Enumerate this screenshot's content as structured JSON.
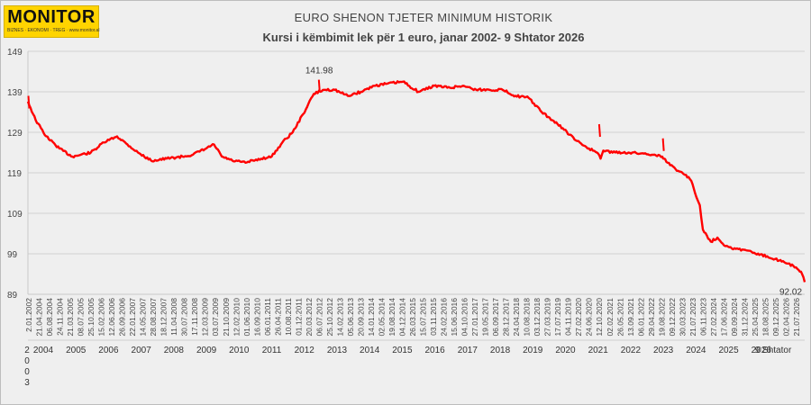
{
  "logo": {
    "name": "MONITOR",
    "tagline": "BIZNES · EKONOMI · TREG · www.monitor.al"
  },
  "chart_data": {
    "type": "line",
    "title": "EURO SHENON TJETER MINIMUM HISTORIK",
    "subtitle": "Kursi i këmbimit lek për 1 euro, janar 2002- 9 Shtator 2026",
    "xlabel": "",
    "ylabel": "",
    "ylim": [
      89,
      149
    ],
    "yticks": [
      89,
      99,
      109,
      119,
      129,
      139,
      149
    ],
    "grid": "horizontal",
    "line_color": "#ff0000",
    "series": [
      {
        "x": [
          "2002-01-01",
          "2002-04-01",
          "2002-08-01",
          "2003-01-01",
          "2003-06-01",
          "2004-01-01",
          "2004-06-01",
          "2004-11-01",
          "2005-03-01",
          "2005-07-01",
          "2005-12-01",
          "2006-06-01",
          "2006-12-01",
          "2007-04-01",
          "2007-09-01",
          "2007-12-01",
          "2008-03-01",
          "2008-07-01",
          "2008-12-01",
          "2009-03-01",
          "2009-06-01",
          "2009-10-01",
          "2010-02-01",
          "2010-06-01",
          "2010-10-01",
          "2011-02-01",
          "2011-06-01",
          "2011-10-01",
          "2012-03-01",
          "2012-08-01",
          "2013-01-01",
          "2013-06-01",
          "2013-12-01",
          "2014-06-01",
          "2014-12-01",
          "2015-06-01",
          "2015-11-01",
          "2016-04-01",
          "2016-09-01",
          "2017-02-01",
          "2017-07-01",
          "2017-12-01",
          "2018-05-01",
          "2018-09-01",
          "2019-01-01",
          "2019-06-01",
          "2019-11-01",
          "2020-02-01",
          "2020-03-15",
          "2020-04-15",
          "2020-09-01",
          "2021-02-01",
          "2021-07-01",
          "2021-12-01",
          "2022-03-01",
          "2022-03-20",
          "2022-05-01",
          "2022-09-01",
          "2022-12-01",
          "2023-02-01",
          "2023-04-01",
          "2023-05-10",
          "2023-06-15",
          "2023-08-01",
          "2023-09-15",
          "2023-12-01",
          "2024-02-01",
          "2024-04-01",
          "2024-07-01",
          "2024-10-01",
          "2025-01-01",
          "2025-04-01",
          "2025-07-01",
          "2025-10-01",
          "2026-01-01",
          "2026-03-01",
          "2026-05-01",
          "2026-07-01",
          "2026-08-10",
          "2026-09-09"
        ],
        "values": [
          136.6,
          132.0,
          128.0,
          125.0,
          123.0,
          124.0,
          126.5,
          128.0,
          126.0,
          124.0,
          122.0,
          122.5,
          123.0,
          123.5,
          125.0,
          126.0,
          123.0,
          122.0,
          121.5,
          122.0,
          122.5,
          123.0,
          126.5,
          129.0,
          133.5,
          138.5,
          139.5,
          139.5,
          138.0,
          139.0,
          140.5,
          141.0,
          141.5,
          139.0,
          140.5,
          140.0,
          140.5,
          139.5,
          139.5,
          139.5,
          138.0,
          137.5,
          134.0,
          132.0,
          130.0,
          127.0,
          125.0,
          124.0,
          122.5,
          124.5,
          124.0,
          124.0,
          123.8,
          123.5,
          123.0,
          122.5,
          121.5,
          119.5,
          118.5,
          117.0,
          113.0,
          111.0,
          105.0,
          103.5,
          102.0,
          103.0,
          101.5,
          100.8,
          100.2,
          100.0,
          99.5,
          98.7,
          98.4,
          97.7,
          97.2,
          96.6,
          96.0,
          95.0,
          94.0,
          92.02
        ],
        "peaks": [
          [
            "2002-01-06",
            138.0
          ],
          [
            "2011-04-01",
            141.98
          ],
          [
            "2020-02-27",
            131.0
          ],
          [
            "2022-03-08",
            127.5
          ]
        ]
      }
    ],
    "annotations": [
      {
        "text": "141.98",
        "x": "2011-04-01",
        "y": 141.98
      },
      {
        "text": "92.02",
        "x": "2026-09-09",
        "y": 92.02
      }
    ],
    "date_labels": [
      "2.01.2002",
      "21.04.2004",
      "06.08.2004",
      "24.11.2004",
      "21.03.2005",
      "08.07.2005",
      "25.10.2005",
      "15.02.2006",
      "12.06.2006",
      "26.09.2006",
      "22.01.2007",
      "14.05.2007",
      "28.08.2007",
      "18.12.2007",
      "11.04.2008",
      "30.07.2008",
      "17.11.2008",
      "12.03.2009",
      "03.07.2009",
      "21.10.2009",
      "12.02.2010",
      "01.06.2010",
      "16.09.2010",
      "06.01.2011",
      "26.04.2011",
      "10.08.2011",
      "01.12.2011",
      "20.03.2012",
      "06.07.2012",
      "25.10.2012",
      "14.02.2013",
      "05.06.2013",
      "20.09.2013",
      "14.01.2014",
      "02.05.2014",
      "19.08.2014",
      "04.12.2014",
      "26.03.2015",
      "15.07.2015",
      "03.11.2015",
      "24.02.2016",
      "15.06.2016",
      "04.10.2016",
      "27.01.2017",
      "19.05.2017",
      "06.09.2017",
      "28.12.2017",
      "24.04.2018",
      "10.08.2018",
      "03.12.2018",
      "27.03.2019",
      "17.07.2019",
      "04.11.2019",
      "27.02.2020",
      "24.06.2020",
      "12.10.2020",
      "02.02.2021",
      "26.05.2021",
      "13.09.2021",
      "06.01.2022",
      "29.04.2022",
      "19.08.2022",
      "09.12.2022",
      "30.03.2023",
      "21.07.2023",
      "06.11.2023",
      "27.02.2024",
      "17.06.2024",
      "09.09.2024",
      "31.12.2024",
      "25.04.2025",
      "18.08.2025",
      "09.12.2025",
      "02.04.2026",
      "21.07.2026"
    ],
    "year_labels": [
      "2004",
      "2005",
      "2006",
      "2007",
      "2008",
      "2009",
      "2010",
      "2011",
      "2012",
      "2013",
      "2014",
      "2015",
      "2016",
      "2017",
      "2018",
      "2019",
      "2020",
      "2021",
      "2022",
      "2023",
      "2024",
      "2025",
      "2026",
      "9 Shtator"
    ],
    "first_year_label": [
      "2",
      "0",
      "0",
      "3"
    ]
  }
}
